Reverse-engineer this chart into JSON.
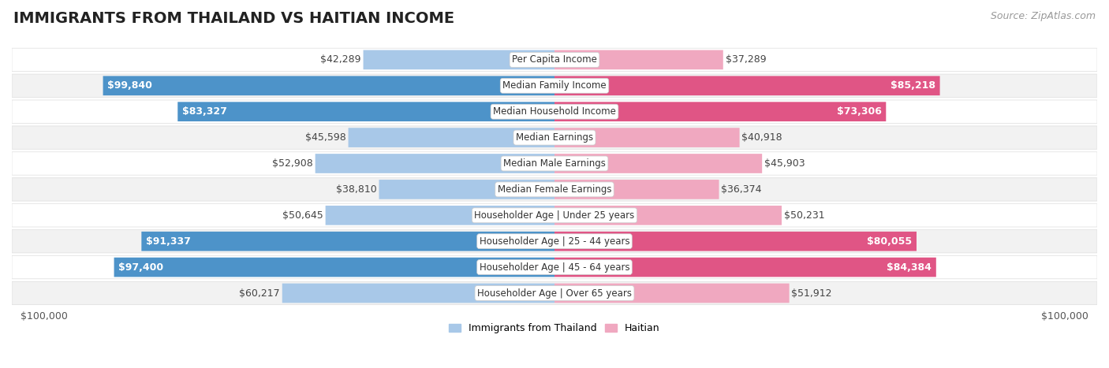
{
  "title": "IMMIGRANTS FROM THAILAND VS HAITIAN INCOME",
  "source": "Source: ZipAtlas.com",
  "categories": [
    "Per Capita Income",
    "Median Family Income",
    "Median Household Income",
    "Median Earnings",
    "Median Male Earnings",
    "Median Female Earnings",
    "Householder Age | Under 25 years",
    "Householder Age | 25 - 44 years",
    "Householder Age | 45 - 64 years",
    "Householder Age | Over 65 years"
  ],
  "thailand_values": [
    42289,
    99840,
    83327,
    45598,
    52908,
    38810,
    50645,
    91337,
    97400,
    60217
  ],
  "haitian_values": [
    37289,
    85218,
    73306,
    40918,
    45903,
    36374,
    50231,
    80055,
    84384,
    51912
  ],
  "max_value": 100000,
  "thailand_color_full": "#4d93c9",
  "thailand_color_light": "#a8c8e8",
  "haitian_color_full": "#e05585",
  "haitian_color_light": "#f0a8c0",
  "row_bg_light": "#f2f2f2",
  "row_bg_white": "#ffffff",
  "thailand_label": "Immigrants from Thailand",
  "haitian_label": "Haitian",
  "x_label_left": "$100,000",
  "x_label_right": "$100,000",
  "thailand_full_threshold": 80000,
  "haitian_full_threshold": 65000,
  "title_fontsize": 14,
  "source_fontsize": 9,
  "bar_label_fontsize": 9,
  "category_fontsize": 8.5,
  "legend_fontsize": 9,
  "axis_label_fontsize": 9
}
